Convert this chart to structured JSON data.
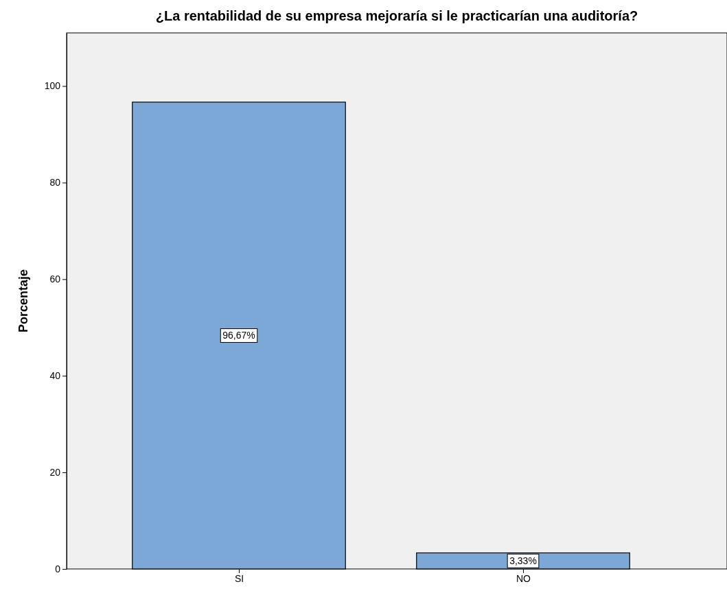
{
  "chart_data": {
    "type": "bar",
    "title": "¿La rentabilidad de su empresa mejoraría si le practicarían una auditoría?",
    "ylabel": "Porcentaje",
    "categories": [
      "SI",
      "NO"
    ],
    "values": [
      96.67,
      3.33
    ],
    "value_labels": [
      "96,67%",
      "3,33%"
    ],
    "color": "#7ba8d6",
    "ylim": [
      0,
      111
    ],
    "yticks": [
      0,
      20,
      40,
      60,
      80,
      100
    ],
    "grid": false
  }
}
